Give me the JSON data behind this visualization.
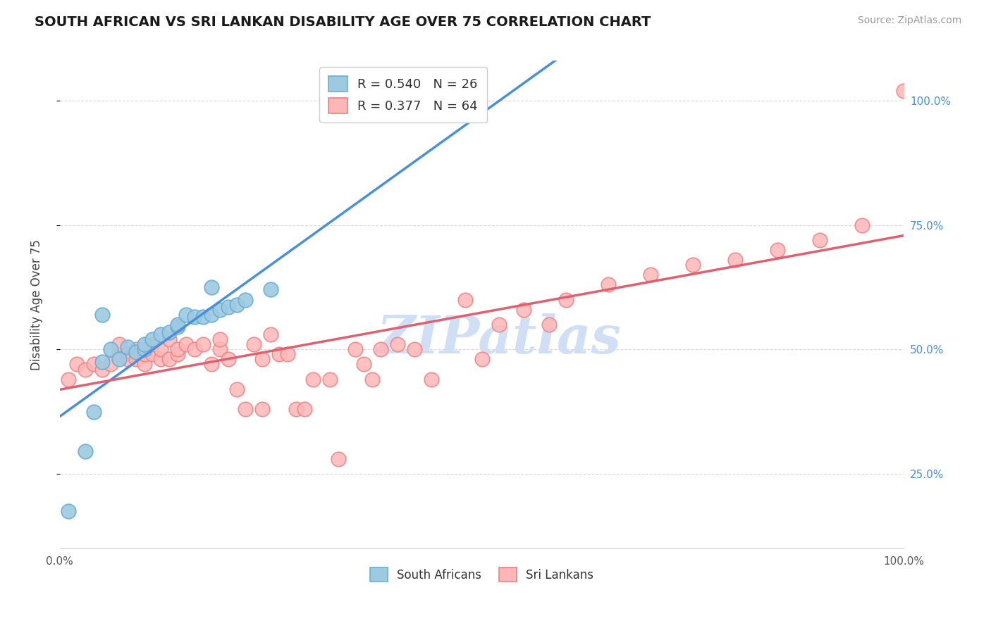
{
  "title": "SOUTH AFRICAN VS SRI LANKAN DISABILITY AGE OVER 75 CORRELATION CHART",
  "source": "Source: ZipAtlas.com",
  "ylabel": "Disability Age Over 75",
  "xlim": [
    0.0,
    1.0
  ],
  "bg_color": "#ffffff",
  "grid_color": "#d8d8d8",
  "sa_color": "#6baed6",
  "sa_color_fill": "#9ecae1",
  "sr_color": "#f08080",
  "sr_color_fill": "#ffb6b6",
  "sa_R": 0.54,
  "sa_N": 26,
  "sr_R": 0.377,
  "sr_N": 64,
  "legend_sa_label": "R = 0.540   N = 26",
  "legend_sr_label": "R = 0.377   N = 64",
  "sa_x": [
    0.01,
    0.03,
    0.04,
    0.05,
    0.06,
    0.07,
    0.08,
    0.09,
    0.1,
    0.1,
    0.11,
    0.12,
    0.13,
    0.14,
    0.14,
    0.15,
    0.16,
    0.17,
    0.18,
    0.18,
    0.19,
    0.2,
    0.21,
    0.22,
    0.25,
    0.05
  ],
  "sa_y": [
    0.175,
    0.295,
    0.375,
    0.475,
    0.5,
    0.48,
    0.505,
    0.495,
    0.5,
    0.51,
    0.52,
    0.53,
    0.535,
    0.545,
    0.55,
    0.57,
    0.565,
    0.565,
    0.57,
    0.625,
    0.58,
    0.585,
    0.59,
    0.6,
    0.62,
    0.57
  ],
  "sr_x": [
    0.01,
    0.02,
    0.03,
    0.04,
    0.05,
    0.06,
    0.07,
    0.07,
    0.08,
    0.08,
    0.09,
    0.09,
    0.1,
    0.1,
    0.1,
    0.11,
    0.11,
    0.12,
    0.12,
    0.13,
    0.13,
    0.14,
    0.14,
    0.15,
    0.16,
    0.17,
    0.18,
    0.19,
    0.19,
    0.2,
    0.21,
    0.22,
    0.23,
    0.24,
    0.24,
    0.25,
    0.26,
    0.27,
    0.28,
    0.29,
    0.3,
    0.32,
    0.33,
    0.35,
    0.37,
    0.38,
    0.4,
    0.42,
    0.44,
    0.5,
    0.52,
    0.55,
    0.58,
    0.6,
    0.65,
    0.7,
    0.75,
    0.8,
    0.85,
    0.9,
    0.95,
    1.0,
    0.36,
    0.48
  ],
  "sr_y": [
    0.44,
    0.47,
    0.46,
    0.47,
    0.46,
    0.47,
    0.49,
    0.51,
    0.49,
    0.48,
    0.48,
    0.5,
    0.47,
    0.49,
    0.5,
    0.49,
    0.51,
    0.48,
    0.5,
    0.48,
    0.52,
    0.49,
    0.5,
    0.51,
    0.5,
    0.51,
    0.47,
    0.5,
    0.52,
    0.48,
    0.42,
    0.38,
    0.51,
    0.38,
    0.48,
    0.53,
    0.49,
    0.49,
    0.38,
    0.38,
    0.44,
    0.44,
    0.28,
    0.5,
    0.44,
    0.5,
    0.51,
    0.5,
    0.44,
    0.48,
    0.55,
    0.58,
    0.55,
    0.6,
    0.63,
    0.65,
    0.67,
    0.68,
    0.7,
    0.72,
    0.75,
    1.02,
    0.47,
    0.6
  ],
  "y_tick_positions": [
    0.25,
    0.5,
    0.75,
    1.0
  ],
  "watermark_text": "ZIPatlas",
  "watermark_color": "#d0dff5",
  "title_color": "#1a1a1a",
  "axis_label_color": "#444444",
  "tick_label_color_right": "#4a90d9",
  "source_color": "#999999"
}
